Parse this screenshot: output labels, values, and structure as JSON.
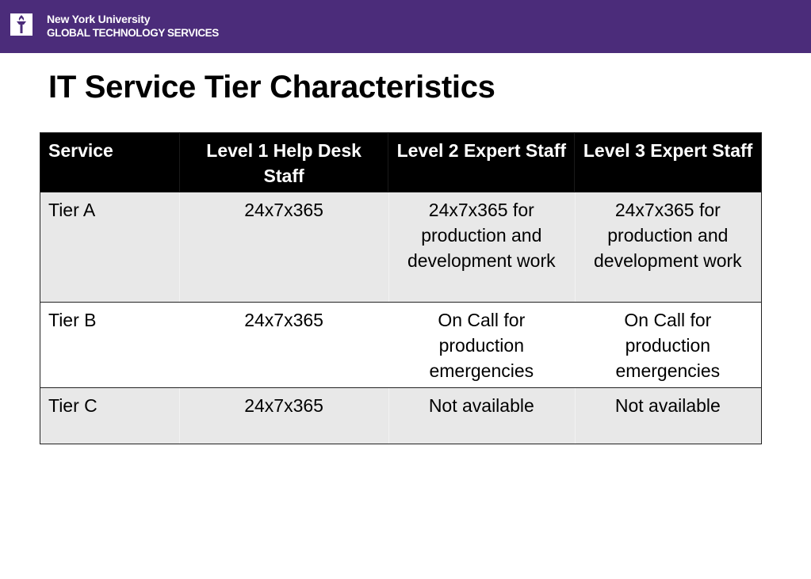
{
  "header": {
    "org_line1": "New York University",
    "org_line2": "GLOBAL TECHNOLOGY SERVICES",
    "logo_icon": "nyu-torch-icon",
    "brand_color": "#4b2c7a"
  },
  "slide": {
    "title": "IT Service Tier Characteristics"
  },
  "table": {
    "columns": [
      "Service",
      "Level 1 Help Desk Staff",
      "Level 2 Expert Staff",
      "Level 3 Expert Staff"
    ],
    "rows": [
      [
        "Tier A",
        "24x7x365",
        "24x7x365 for production and development work",
        "24x7x365 for production and development work"
      ],
      [
        "Tier B",
        "24x7x365",
        "On Call for production emergencies",
        "On Call for production emergencies"
      ],
      [
        "Tier C",
        "24x7x365",
        "Not available",
        "Not available"
      ]
    ],
    "header_bg": "#000000",
    "shaded_row_bg": "#e8e8e8"
  }
}
